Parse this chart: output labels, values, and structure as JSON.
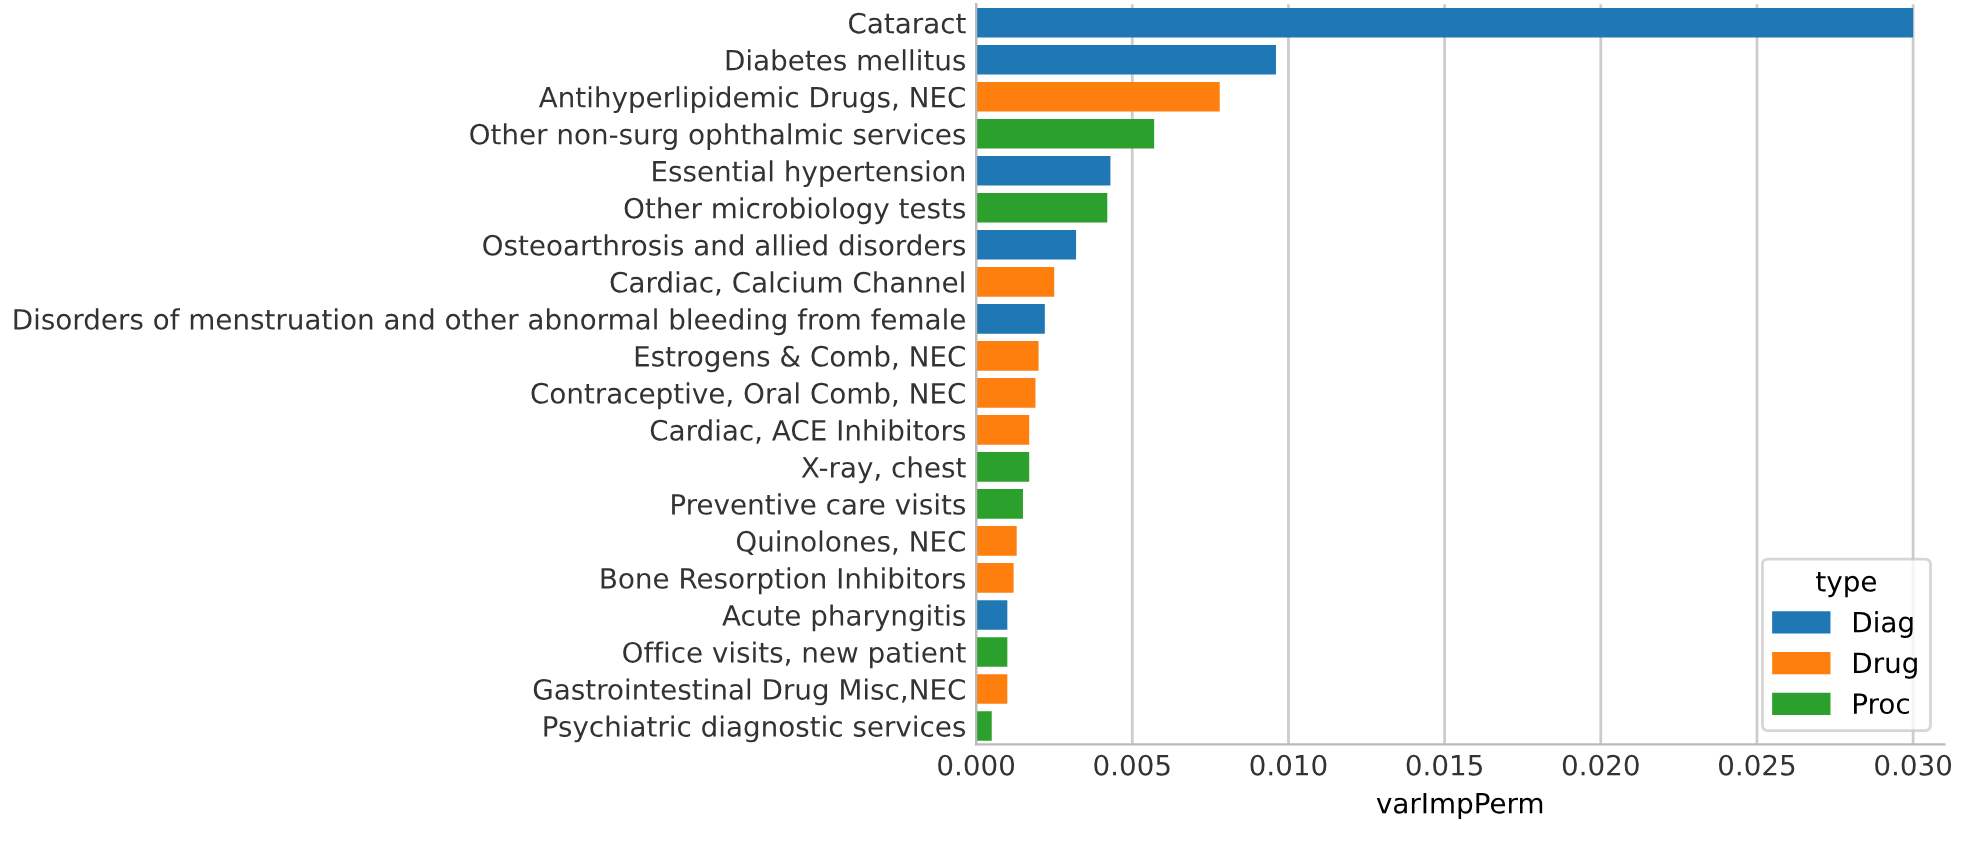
{
  "chart_data": {
    "type": "bar",
    "orientation": "horizontal",
    "xlabel": "varImpPerm",
    "legend_title": "type",
    "legend": "bottom right",
    "grid": "x",
    "categories": [
      "Cataract",
      "Diabetes mellitus",
      "Antihyperlipidemic Drugs, NEC",
      "Other non-surg ophthalmic services",
      "Essential hypertension",
      "Other microbiology tests",
      "Osteoarthrosis and allied disorders",
      "Cardiac, Calcium Channel",
      "Disorders of menstruation and other abnormal bleeding from female",
      "Estrogens & Comb, NEC",
      "Contraceptive, Oral Comb, NEC",
      "Cardiac, ACE Inhibitors",
      "X-ray, chest",
      "Preventive care visits",
      "Quinolones, NEC",
      "Bone Resorption Inhibitors",
      "Acute pharyngitis",
      "Office visits, new patient",
      "Gastrointestinal Drug Misc,NEC",
      "Psychiatric diagnostic services"
    ],
    "series": [
      {
        "name": "Diag",
        "color": "#1f77b4",
        "values": [
          0.03,
          0.0096,
          null,
          null,
          0.0043,
          null,
          0.0032,
          null,
          0.0022,
          null,
          null,
          null,
          null,
          null,
          null,
          null,
          0.001,
          null,
          null,
          null
        ]
      },
      {
        "name": "Drug",
        "color": "#ff7f0e",
        "values": [
          null,
          null,
          0.0078,
          null,
          null,
          null,
          null,
          0.0025,
          null,
          0.002,
          0.0019,
          0.0017,
          null,
          null,
          0.0013,
          0.0012,
          null,
          null,
          0.001,
          null
        ]
      },
      {
        "name": "Proc",
        "color": "#2ca02c",
        "values": [
          null,
          null,
          null,
          0.0057,
          null,
          0.0042,
          null,
          null,
          null,
          null,
          null,
          null,
          0.0017,
          0.0015,
          null,
          null,
          null,
          0.001,
          null,
          0.0005
        ]
      }
    ],
    "xlim": [
      0,
      0.031
    ],
    "xticks": [
      {
        "value": 0,
        "label": "0.000"
      },
      {
        "value": 0.005,
        "label": "0.005"
      },
      {
        "value": 0.01,
        "label": "0.010"
      },
      {
        "value": 0.015,
        "label": "0.015"
      },
      {
        "value": 0.02,
        "label": "0.020"
      },
      {
        "value": 0.025,
        "label": "0.025"
      },
      {
        "value": 0.03,
        "label": "0.030"
      }
    ]
  }
}
